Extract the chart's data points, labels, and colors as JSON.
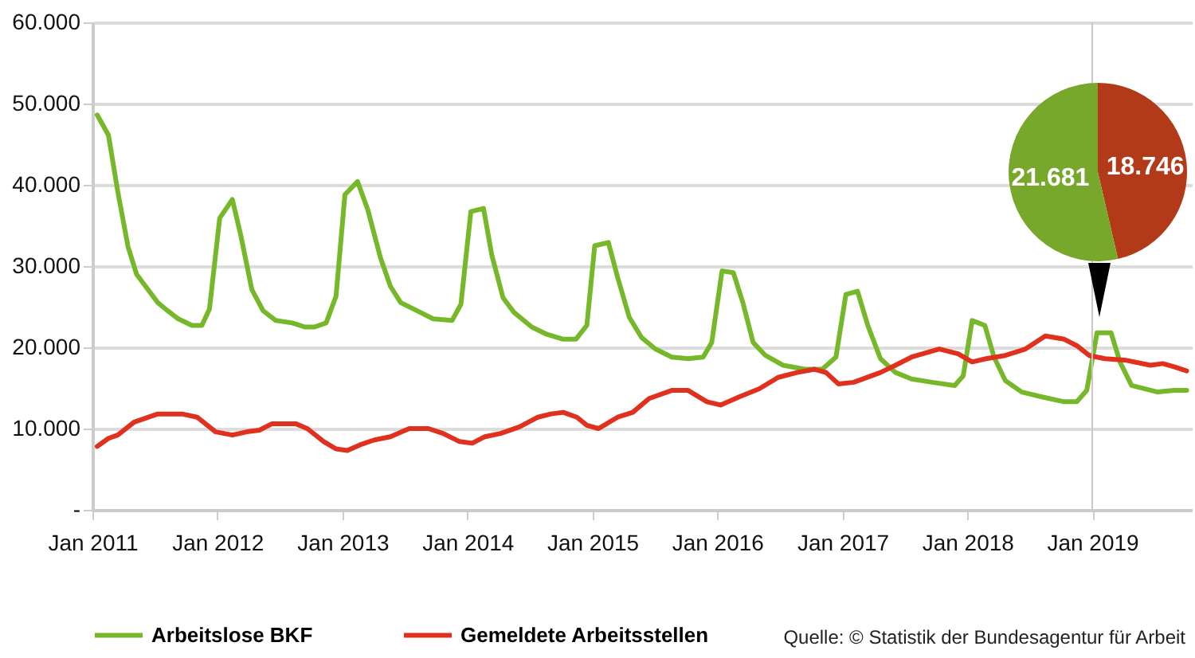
{
  "chart_data": [
    {
      "type": "line",
      "xlim": [
        "2011-01-01",
        "2019-10-19"
      ],
      "xticks": [
        {
          "value": "2011-01",
          "label": "Jan 2011"
        },
        {
          "value": "2012-01",
          "label": "Jan 2012"
        },
        {
          "value": "2013-01",
          "label": "Jan 2013"
        },
        {
          "value": "2014-01",
          "label": "Jan 2014"
        },
        {
          "value": "2015-01",
          "label": "Jan 2015"
        },
        {
          "value": "2016-01",
          "label": "Jan 2016"
        },
        {
          "value": "2017-01",
          "label": "Jan 2017"
        },
        {
          "value": "2018-01",
          "label": "Jan 2018"
        },
        {
          "value": "2019-01",
          "label": "Jan 2019"
        }
      ],
      "ylim": [
        0,
        60000
      ],
      "yticks": [
        {
          "value": 0,
          "label": "-"
        },
        {
          "value": 10000,
          "label": "10.000"
        },
        {
          "value": 20000,
          "label": "20.000"
        },
        {
          "value": 30000,
          "label": "30.000"
        },
        {
          "value": 40000,
          "label": "40.000"
        },
        {
          "value": 50000,
          "label": "50.000"
        },
        {
          "value": 60000,
          "label": "60.000"
        }
      ],
      "grid": "y",
      "legend": "bottom",
      "line_style": "solid",
      "series": [
        {
          "name": "Arbeitslose BKF",
          "color": "#76b82a",
          "x": [
            "2011-01-15",
            "2011-02-17",
            "2011-03-16",
            "2011-04-15",
            "2011-05-10",
            "2011-07-11",
            "2011-08-03",
            "2011-09-09",
            "2011-10-19",
            "2011-11-17",
            "2011-12-09",
            "2012-01-08",
            "2012-02-14",
            "2012-03-09",
            "2012-04-11",
            "2012-05-14",
            "2012-06-20",
            "2012-08-07",
            "2012-09-13",
            "2012-10-11",
            "2012-11-14",
            "2012-12-13",
            "2013-01-08",
            "2013-02-14",
            "2013-03-16",
            "2013-04-22",
            "2013-05-21",
            "2013-06-20",
            "2013-08-07",
            "2013-09-23",
            "2013-11-17",
            "2013-12-13",
            "2014-01-11",
            "2014-02-17",
            "2014-03-13",
            "2014-04-15",
            "2014-05-17",
            "2014-07-08",
            "2014-08-21",
            "2014-10-08",
            "2014-11-14",
            "2014-12-16",
            "2015-01-08",
            "2015-02-17",
            "2015-03-16",
            "2015-04-19",
            "2015-05-25",
            "2015-07-04",
            "2015-08-21",
            "2015-10-08",
            "2015-11-21",
            "2015-12-16",
            "2016-01-15",
            "2016-02-17",
            "2016-03-16",
            "2016-04-15",
            "2016-05-21",
            "2016-07-11",
            "2016-09-13",
            "2016-11-03",
            "2016-12-13",
            "2017-01-11",
            "2017-02-14",
            "2017-03-16",
            "2017-04-22",
            "2017-06-05",
            "2017-07-22",
            "2017-09-20",
            "2017-11-25",
            "2017-12-20",
            "2018-01-15",
            "2018-02-21",
            "2018-03-20",
            "2018-04-22",
            "2018-06-09",
            "2018-08-07",
            "2018-10-11",
            "2018-11-17",
            "2018-12-16",
            "2019-01-15",
            "2019-02-25",
            "2019-03-23",
            "2019-04-26",
            "2019-07-11",
            "2019-08-28",
            "2019-10-04"
          ],
          "values": [
            48600,
            46100,
            39200,
            32400,
            29000,
            25500,
            24700,
            23500,
            22700,
            22700,
            24700,
            35900,
            38200,
            33900,
            27100,
            24500,
            23300,
            23000,
            22500,
            22500,
            23000,
            26300,
            38800,
            40400,
            36900,
            31000,
            27500,
            25500,
            24500,
            23500,
            23300,
            25300,
            36700,
            37100,
            31400,
            26100,
            24300,
            22500,
            21600,
            21000,
            21000,
            22700,
            32500,
            32900,
            28600,
            23700,
            21200,
            19800,
            18800,
            18600,
            18800,
            20600,
            29400,
            29200,
            25500,
            20600,
            19000,
            17800,
            17300,
            17300,
            18800,
            26500,
            26900,
            22700,
            18600,
            16900,
            16100,
            15700,
            15300,
            16500,
            23300,
            22700,
            18800,
            15900,
            14500,
            13900,
            13300,
            13300,
            14700,
            21800,
            21800,
            18200,
            15300,
            14500,
            14700,
            14700
          ]
        },
        {
          "name": "Gemeldete Arbeitsstellen",
          "color": "#e0301e",
          "x": [
            "2011-01-15",
            "2011-02-17",
            "2011-03-16",
            "2011-05-03",
            "2011-07-11",
            "2011-09-20",
            "2011-11-03",
            "2011-12-27",
            "2012-02-14",
            "2012-03-27",
            "2012-05-03",
            "2012-06-09",
            "2012-08-17",
            "2012-09-20",
            "2012-11-07",
            "2012-12-13",
            "2013-01-15",
            "2013-02-21",
            "2013-04-04",
            "2013-05-21",
            "2013-07-15",
            "2013-09-09",
            "2013-10-22",
            "2013-12-09",
            "2014-01-15",
            "2014-02-21",
            "2014-04-08",
            "2014-06-02",
            "2014-07-26",
            "2014-09-02",
            "2014-10-08",
            "2014-11-17",
            "2014-12-16",
            "2015-01-19",
            "2015-03-16",
            "2015-04-29",
            "2015-06-16",
            "2015-08-21",
            "2015-10-08",
            "2015-12-02",
            "2016-01-11",
            "2016-03-05",
            "2016-05-03",
            "2016-06-27",
            "2016-08-21",
            "2016-10-11",
            "2016-11-14",
            "2016-12-20",
            "2017-02-03",
            "2017-04-22",
            "2017-06-05",
            "2017-07-22",
            "2017-10-11",
            "2017-12-05",
            "2018-01-15",
            "2018-02-25",
            "2018-04-22",
            "2018-06-20",
            "2018-08-17",
            "2018-10-11",
            "2018-11-17",
            "2018-12-23",
            "2019-02-07",
            "2019-04-11",
            "2019-06-20",
            "2019-07-26",
            "2019-08-28",
            "2019-10-04"
          ],
          "values": [
            7800,
            8800,
            9200,
            10800,
            11800,
            11800,
            11400,
            9600,
            9200,
            9600,
            9800,
            10600,
            10600,
            10000,
            8400,
            7500,
            7300,
            8000,
            8600,
            9000,
            10000,
            10000,
            9400,
            8400,
            8200,
            9000,
            9400,
            10200,
            11400,
            11800,
            12000,
            11400,
            10400,
            10000,
            11400,
            12000,
            13700,
            14700,
            14700,
            13300,
            12900,
            13900,
            14900,
            16300,
            16900,
            17300,
            16900,
            15500,
            15700,
            16900,
            17800,
            18800,
            19800,
            19200,
            18200,
            18600,
            19000,
            19800,
            21400,
            21000,
            20200,
            19000,
            18600,
            18400,
            17800,
            18000,
            17600,
            17100
          ]
        }
      ],
      "ref_lines": [
        {
          "axis": "x",
          "value": "2019-01",
          "color": "#c8c8c8"
        }
      ],
      "annotations": [
        "Quelle: © Statistik der Bundesagentur für Arbeit"
      ]
    },
    {
      "type": "pie",
      "categories": [
        null,
        null
      ],
      "values": [
        18746,
        21681
      ],
      "colors": [
        "#b23a18",
        "#78a82b"
      ],
      "value_labels": [
        "18.746",
        "21.681"
      ]
    }
  ]
}
